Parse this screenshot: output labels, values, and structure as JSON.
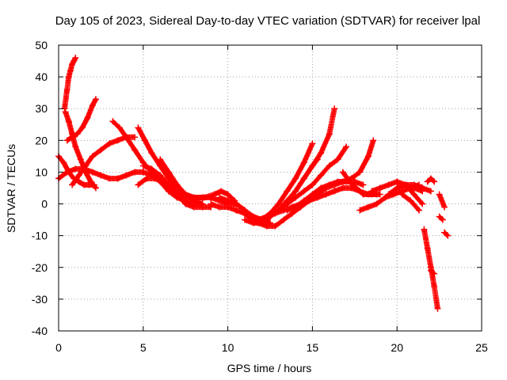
{
  "chart_data": {
    "type": "scatter",
    "title": "Day 105 of 2023, Sidereal Day-to-day VTEC variation (SDTVAR) for receiver lpal",
    "xlabel": "GPS time / hours",
    "ylabel": "SDTVAR / TECUs",
    "xlim": [
      0,
      25
    ],
    "ylim": [
      -40,
      50
    ],
    "xticks": [
      0,
      5,
      10,
      15,
      20,
      25
    ],
    "yticks": [
      -40,
      -30,
      -20,
      -10,
      0,
      10,
      20,
      30,
      40,
      50
    ],
    "grid": true,
    "marker": "+",
    "color": "#ff0000",
    "series": [
      {
        "name": "arc-1",
        "x": [
          0.35,
          0.5,
          0.6,
          0.7,
          0.8,
          0.9,
          1.0
        ],
        "y": [
          30,
          36,
          40,
          42,
          44,
          45,
          46
        ]
      },
      {
        "name": "arc-2",
        "x": [
          0.4,
          0.6,
          0.8,
          1.0,
          1.3,
          1.6,
          1.9,
          2.2
        ],
        "y": [
          29,
          26,
          22,
          18,
          14,
          10,
          7,
          5
        ]
      },
      {
        "name": "arc-3",
        "x": [
          0.5,
          0.8,
          1.1,
          1.4,
          1.7,
          2.0,
          2.2
        ],
        "y": [
          20,
          21,
          22,
          24,
          27,
          31,
          33
        ]
      },
      {
        "name": "arc-4",
        "x": [
          0.8,
          1.2,
          1.6,
          2.0,
          2.5,
          3.0,
          3.5,
          4.0,
          4.5
        ],
        "y": [
          6,
          9,
          12,
          15,
          17,
          19,
          20,
          21,
          21
        ]
      },
      {
        "name": "arc-5",
        "x": [
          0.0,
          0.3,
          0.6,
          0.9,
          1.2,
          1.5,
          1.8,
          2.1
        ],
        "y": [
          15,
          13,
          10,
          8,
          7,
          6,
          6,
          6
        ]
      },
      {
        "name": "arc-6",
        "x": [
          0.0,
          0.5,
          1.0,
          1.5,
          2.0,
          2.5,
          3.0,
          3.5,
          4.0,
          4.5,
          5.0,
          5.5,
          6.0,
          6.5,
          7.0,
          7.5,
          8.0,
          8.5
        ],
        "y": [
          8,
          10,
          11,
          11,
          10,
          9,
          8,
          8,
          9,
          10,
          10,
          9,
          7,
          5,
          3,
          2,
          2,
          2
        ]
      },
      {
        "name": "arc-7",
        "x": [
          3.2,
          3.6,
          4.0,
          4.5,
          5.0,
          5.5,
          6.0,
          6.5,
          7.0,
          7.5,
          8.0,
          8.5
        ],
        "y": [
          26,
          24,
          21,
          17,
          13,
          10,
          7,
          4,
          2,
          1,
          0,
          0
        ]
      },
      {
        "name": "arc-8",
        "x": [
          4.7,
          5.1,
          5.5,
          6.0,
          6.5,
          7.0,
          7.5,
          8.0,
          8.5,
          9.0,
          9.5,
          10.0,
          10.5,
          11.0
        ],
        "y": [
          24,
          20,
          16,
          12,
          8,
          5,
          3,
          2,
          2,
          2,
          1,
          0,
          0,
          -2
        ]
      },
      {
        "name": "arc-9",
        "x": [
          4.7,
          5.2,
          5.7,
          6.2,
          6.8,
          7.4,
          8.0,
          8.6,
          9.2,
          9.6,
          10.0,
          10.4
        ],
        "y": [
          6,
          8,
          8,
          7,
          5,
          3,
          2,
          2,
          3,
          4,
          3,
          1
        ]
      },
      {
        "name": "arc-10",
        "x": [
          5.0,
          5.5,
          6.0,
          6.5,
          7.0,
          7.5,
          8.0,
          8.5,
          9.0
        ],
        "y": [
          12,
          11,
          9,
          6,
          3,
          0,
          -1,
          -1,
          -1
        ]
      },
      {
        "name": "arc-11",
        "x": [
          6.0,
          6.5,
          7.0,
          7.5,
          8.0,
          8.5
        ],
        "y": [
          14,
          10,
          6,
          3,
          1,
          0
        ]
      },
      {
        "name": "arc-12",
        "x": [
          9.0,
          9.5,
          10.0,
          10.5,
          11.0,
          11.5,
          12.0
        ],
        "y": [
          0,
          -1,
          -1,
          -2,
          -3,
          -5,
          -5
        ]
      },
      {
        "name": "arc-13",
        "x": [
          9.5,
          10.0,
          10.5,
          11.0,
          11.5,
          12.0,
          12.5
        ],
        "y": [
          2,
          1,
          0,
          -2,
          -4,
          -5,
          -6
        ]
      },
      {
        "name": "arc-14",
        "x": [
          11.0,
          11.5,
          12.0,
          12.5,
          13.0,
          13.5,
          14.0,
          14.5,
          15.0,
          15.5,
          16.0,
          16.3
        ],
        "y": [
          -5,
          -6,
          -6,
          -4,
          -2,
          1,
          4,
          8,
          12,
          16,
          22,
          30
        ]
      },
      {
        "name": "arc-15",
        "x": [
          11.0,
          11.5,
          12.0,
          12.5,
          13.0,
          13.5,
          14.0,
          14.5,
          15.0
        ],
        "y": [
          -3,
          -5,
          -5,
          -3,
          0,
          4,
          8,
          13,
          19
        ]
      },
      {
        "name": "arc-16",
        "x": [
          11.5,
          12.0,
          12.5,
          13.0,
          13.5,
          14.0,
          14.5,
          15.0,
          15.5,
          16.0,
          16.5,
          17.0
        ],
        "y": [
          -4,
          -5,
          -4,
          -2,
          0,
          2,
          4,
          6,
          9,
          12,
          14,
          18
        ]
      },
      {
        "name": "arc-17",
        "x": [
          11.3,
          11.8,
          12.3,
          12.8,
          13.3,
          13.8,
          14.3,
          14.8,
          15.3,
          15.8,
          16.3,
          16.8,
          17.3,
          17.8,
          18.3,
          18.6
        ],
        "y": [
          -5,
          -6,
          -7,
          -7,
          -5,
          -3,
          -1,
          1,
          3,
          5,
          6,
          7,
          8,
          10,
          15,
          20
        ]
      },
      {
        "name": "arc-18",
        "x": [
          11.8,
          12.3,
          12.8,
          13.3,
          13.8,
          14.3,
          14.8,
          15.3,
          15.8,
          16.3,
          16.8,
          17.3,
          17.8,
          18.3,
          18.8
        ],
        "y": [
          -5,
          -4,
          -3,
          -2,
          -1,
          0,
          1,
          2,
          3,
          4,
          5,
          5,
          4,
          3,
          3
        ]
      },
      {
        "name": "arc-19",
        "x": [
          13.5,
          14.0,
          14.5,
          15.0,
          15.5,
          16.0,
          16.5,
          17.0,
          17.5,
          18.0
        ],
        "y": [
          -2,
          -1,
          1,
          3,
          5,
          6,
          7,
          7,
          7,
          6
        ]
      },
      {
        "name": "arc-20",
        "x": [
          14.5,
          15.0,
          15.3
        ],
        "y": [
          8,
          12,
          14
        ]
      },
      {
        "name": "arc-21",
        "x": [
          16.8,
          17.2,
          17.6,
          18.0,
          18.5,
          19.0
        ],
        "y": [
          10,
          7,
          5,
          3,
          3,
          3
        ]
      },
      {
        "name": "arc-22",
        "x": [
          17.8,
          18.3,
          18.8,
          19.3,
          19.8,
          20.3,
          20.8,
          21.3
        ],
        "y": [
          -2,
          -1,
          0,
          2,
          3,
          4,
          5,
          6
        ]
      },
      {
        "name": "arc-23",
        "x": [
          18.5,
          19.0,
          19.5,
          20.0,
          20.5,
          21.0,
          21.5
        ],
        "y": [
          4,
          5,
          6,
          7,
          6,
          3,
          0
        ]
      },
      {
        "name": "arc-24",
        "x": [
          19.5,
          20.0,
          20.5,
          21.0,
          21.5
        ],
        "y": [
          3,
          5,
          6,
          5,
          4
        ]
      },
      {
        "name": "arc-25",
        "x": [
          20.0,
          20.5,
          21.0,
          21.5,
          22.0
        ],
        "y": [
          5,
          6,
          6,
          5,
          4
        ]
      },
      {
        "name": "arc-26",
        "x": [
          20.3,
          20.8,
          21.3
        ],
        "y": [
          3,
          1,
          -2
        ]
      },
      {
        "name": "arc-27",
        "x": [
          21.8,
          22.0,
          22.2
        ],
        "y": [
          7,
          8,
          7
        ]
      },
      {
        "name": "arc-28",
        "x": [
          21.6,
          21.8,
          22.0,
          22.2,
          22.4
        ],
        "y": [
          -8,
          -14,
          -20,
          -26,
          -33
        ]
      },
      {
        "name": "arc-29",
        "x": [
          22.0,
          22.2
        ],
        "y": [
          -21,
          -22
        ]
      },
      {
        "name": "arc-30",
        "x": [
          22.5,
          22.8
        ],
        "y": [
          3,
          -1
        ]
      },
      {
        "name": "arc-31",
        "x": [
          22.5,
          22.7
        ],
        "y": [
          -4,
          -5
        ]
      },
      {
        "name": "arc-32",
        "x": [
          22.8,
          23.0
        ],
        "y": [
          -9,
          -10
        ]
      }
    ]
  }
}
